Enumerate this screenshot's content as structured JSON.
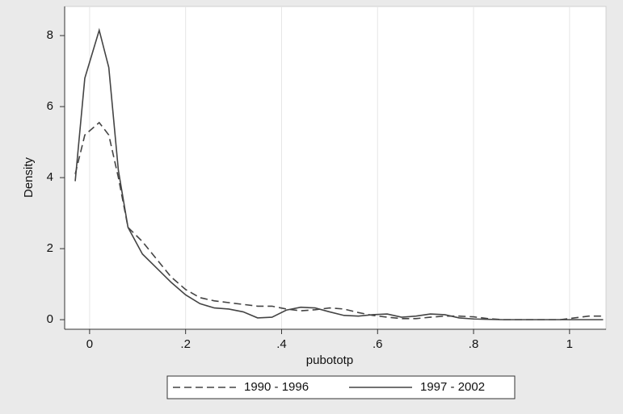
{
  "chart_data": {
    "type": "line",
    "x_label": "pubototp",
    "y_label": "Density",
    "x": [
      -0.03,
      -0.01,
      0.02,
      0.04,
      0.06,
      0.08,
      0.11,
      0.14,
      0.17,
      0.2,
      0.23,
      0.26,
      0.29,
      0.32,
      0.35,
      0.38,
      0.41,
      0.44,
      0.47,
      0.5,
      0.53,
      0.56,
      0.59,
      0.62,
      0.65,
      0.68,
      0.71,
      0.74,
      0.77,
      0.8,
      0.83,
      0.86,
      0.89,
      0.92,
      0.95,
      0.98,
      1.01,
      1.04,
      1.07
    ],
    "series": [
      {
        "name": "1990 - 1996",
        "color": "#444444",
        "line_style": "dashed",
        "values": [
          4.1,
          5.2,
          5.55,
          5.2,
          4.0,
          2.6,
          2.2,
          1.7,
          1.2,
          0.85,
          0.62,
          0.53,
          0.48,
          0.43,
          0.38,
          0.38,
          0.3,
          0.25,
          0.28,
          0.33,
          0.3,
          0.2,
          0.12,
          0.07,
          0.03,
          0.03,
          0.07,
          0.1,
          0.1,
          0.08,
          0.03,
          0,
          0,
          0,
          0,
          0,
          0.05,
          0.1,
          0.1
        ]
      },
      {
        "name": "1997 - 2002",
        "color": "#444444",
        "line_style": "solid",
        "values": [
          3.9,
          6.8,
          8.15,
          7.1,
          4.2,
          2.6,
          1.85,
          1.45,
          1.05,
          0.7,
          0.45,
          0.33,
          0.3,
          0.22,
          0.05,
          0.07,
          0.27,
          0.35,
          0.33,
          0.22,
          0.12,
          0.1,
          0.14,
          0.16,
          0.07,
          0.1,
          0.16,
          0.14,
          0.05,
          0.02,
          0.01,
          0,
          0,
          0,
          0,
          0,
          0,
          0,
          0
        ]
      }
    ],
    "xlim": [
      -0.052,
      1.076
    ],
    "xticks": [
      0,
      {
        "value": 0.2,
        "label": ".2"
      },
      {
        "value": 0.4,
        "label": ".4"
      },
      {
        "value": 0.6,
        "label": ".6"
      },
      {
        "value": 0.8,
        "label": ".8"
      },
      1
    ],
    "ylim": [
      -0.27,
      8.82
    ],
    "yticks": [
      0,
      2,
      4,
      6,
      8
    ],
    "grid": "x",
    "legend": "bottom"
  }
}
